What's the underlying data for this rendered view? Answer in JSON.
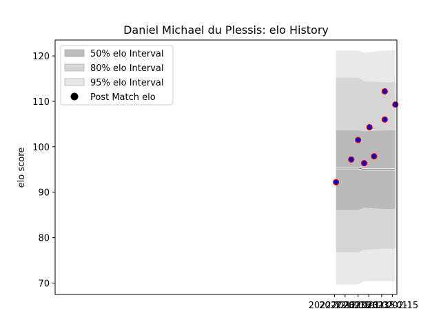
{
  "chart_data": {
    "type": "line",
    "title": "Daniel Michael du Plessis: elo History",
    "xlabel": "",
    "ylabel": "elo score",
    "x_axis_type": "date",
    "xlim": [
      "2021-11-29",
      "2023-02-21"
    ],
    "ylim": [
      67.5,
      123.5
    ],
    "grid": false,
    "legend": {
      "placement": "top-left",
      "entries": [
        "50% elo Interval",
        "80% elo Interval",
        "95% elo Interval",
        "Post Match elo"
      ]
    },
    "x_ticks": [
      "2022-12-01",
      "2022-12-15",
      "2023-01-01",
      "2023-01-15",
      "2023-02-01",
      "2023-02-15"
    ],
    "y_ticks": [
      70,
      80,
      90,
      100,
      110,
      120
    ],
    "dates": [
      "2022-12-03",
      "2022-12-23",
      "2023-01-01",
      "2023-01-09",
      "2023-01-16",
      "2023-01-22",
      "2023-02-05",
      "2023-02-05",
      "2023-02-19"
    ],
    "series": [
      {
        "name": "Post Match elo",
        "kind": "scatter",
        "x": [
          "2022-12-03",
          "2022-12-23",
          "2023-01-01",
          "2023-01-09",
          "2023-01-16",
          "2023-01-22",
          "2023-02-05",
          "2023-02-05",
          "2023-02-19"
        ],
        "values": [
          92.2,
          97.2,
          101.5,
          96.4,
          104.3,
          97.9,
          106.0,
          112.2,
          109.3
        ]
      },
      {
        "kind": "line",
        "x": [
          "2022-12-03",
          "2023-01-01",
          "2023-01-09",
          "2023-02-19"
        ],
        "values": [
          95.3,
          95.3,
          95.0,
          95.0
        ]
      }
    ],
    "bands": [
      {
        "name": "95% elo Interval",
        "x": [
          "2022-12-03",
          "2023-01-01",
          "2023-01-09",
          "2023-02-05",
          "2023-02-19"
        ],
        "lower": [
          69.7,
          69.7,
          70.4,
          70.4,
          70.4
        ],
        "upper": [
          121.2,
          121.2,
          120.7,
          121.2,
          121.2
        ]
      },
      {
        "name": "80% elo Interval",
        "x": [
          "2022-12-03",
          "2023-01-01",
          "2023-01-09",
          "2023-02-05",
          "2023-02-19"
        ],
        "lower": [
          76.8,
          76.8,
          77.3,
          77.6,
          77.6
        ],
        "upper": [
          115.2,
          115.2,
          114.4,
          114.2,
          114.2
        ]
      },
      {
        "name": "50% elo Interval",
        "x": [
          "2022-12-03",
          "2023-01-01",
          "2023-01-09",
          "2023-02-05",
          "2023-02-19"
        ],
        "lower": [
          86.1,
          86.1,
          86.6,
          86.3,
          86.3
        ],
        "upper": [
          103.6,
          103.6,
          103.4,
          103.6,
          103.6
        ]
      }
    ],
    "colors": {
      "band_50": "#b2b2b2",
      "band_80": "#cfcfcf",
      "band_95": "#e3e3e3",
      "median_line": "#8c8c8c",
      "marker_fill": "#0000cc",
      "marker_edge": "#ff0000",
      "axis": "#000000"
    }
  }
}
